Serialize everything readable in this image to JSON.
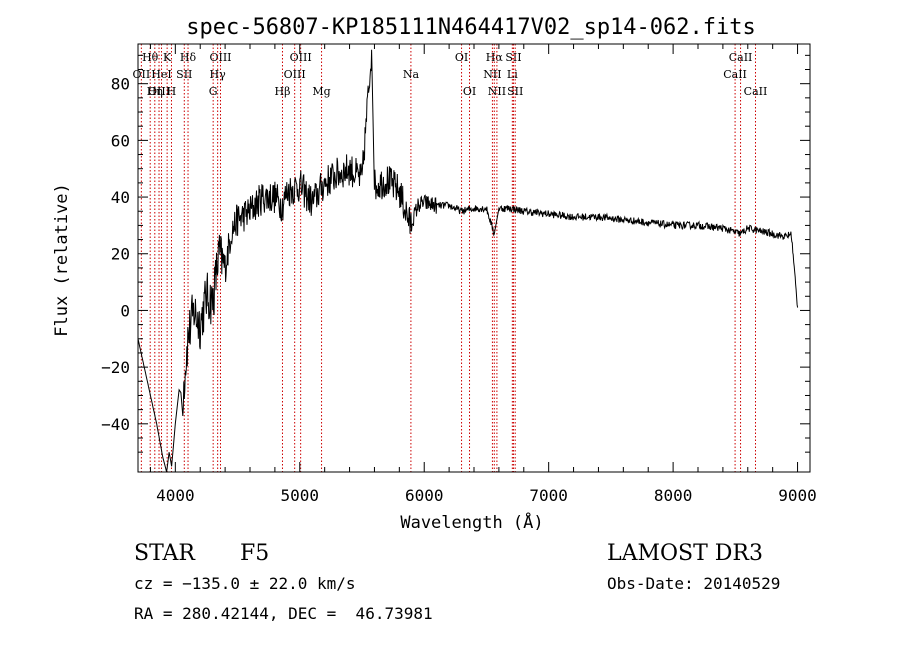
{
  "chart_data": {
    "type": "line",
    "title": "spec-56807-KP185111N464417V02_sp14-062.fits",
    "xlabel": "Wavelength (Å)",
    "ylabel": "Flux (relative)",
    "xlim": [
      3700,
      9100
    ],
    "ylim": [
      -57,
      94
    ],
    "xticks": [
      4000,
      5000,
      6000,
      7000,
      8000,
      9000
    ],
    "yticks": [
      -40,
      -20,
      0,
      20,
      40,
      60,
      80
    ],
    "grid": false,
    "line_color": "#000000",
    "marker_color": "#cc0000",
    "series": [
      {
        "x": [
          3700,
          3750,
          3800,
          3850,
          3900,
          3930,
          3950,
          3970,
          4000,
          4030,
          4060,
          4100,
          4150,
          4200,
          4250,
          4300,
          4350,
          4400,
          4450,
          4500,
          4600,
          4700,
          4800,
          4860,
          4900,
          5000,
          5100,
          5200,
          5300,
          5400,
          5500,
          5577,
          5600,
          5700,
          5800,
          5890,
          5950,
          6000,
          6100,
          6200,
          6300,
          6400,
          6500,
          6563,
          6600,
          6700,
          6800,
          7000,
          7200,
          7400,
          7600,
          7800,
          8000,
          8200,
          8400,
          8542,
          8600,
          8700,
          8800,
          8900,
          8950,
          9000
        ],
        "y": [
          -10,
          -20,
          -30,
          -40,
          -52,
          -57,
          -50,
          -55,
          -40,
          -28,
          -30,
          -10,
          0,
          -5,
          5,
          3,
          20,
          15,
          28,
          32,
          35,
          40,
          40,
          37,
          42,
          44,
          38,
          45,
          48,
          50,
          46,
          92,
          44,
          46,
          42,
          30,
          37,
          38,
          37,
          37,
          35,
          36,
          36,
          27,
          36,
          36,
          35,
          34,
          33,
          33,
          32,
          31,
          30,
          30,
          29,
          27,
          29,
          28,
          27,
          26,
          27,
          1
        ]
      }
    ],
    "line_markers": [
      {
        "label": "Hθ",
        "x": 3798,
        "row": 0
      },
      {
        "label": "OII",
        "x": 3727,
        "row": 1
      },
      {
        "label": "OIII",
        "x": 3869,
        "row": 2
      },
      {
        "label": "K",
        "x": 3934,
        "row": 0
      },
      {
        "label": "HeI",
        "x": 3889,
        "row": 1
      },
      {
        "label": "Hη",
        "x": 3835,
        "row": 2
      },
      {
        "label": "SII",
        "x": 4072,
        "row": 1
      },
      {
        "label": "H",
        "x": 3969,
        "row": 2
      },
      {
        "label": "Hδ",
        "x": 4102,
        "row": 0
      },
      {
        "label": "OIII",
        "x": 4363,
        "row": 0
      },
      {
        "label": "Hγ",
        "x": 4340,
        "row": 1
      },
      {
        "label": "G",
        "x": 4304,
        "row": 2
      },
      {
        "label": "OIII",
        "x": 5007,
        "row": 0
      },
      {
        "label": "OIII",
        "x": 4959,
        "row": 1
      },
      {
        "label": "Hβ",
        "x": 4861,
        "row": 2
      },
      {
        "label": "Mg",
        "x": 5175,
        "row": 2
      },
      {
        "label": "Na",
        "x": 5893,
        "row": 1
      },
      {
        "label": "OI",
        "x": 6300,
        "row": 0
      },
      {
        "label": "OI",
        "x": 6364,
        "row": 2
      },
      {
        "label": "Hα",
        "x": 6563,
        "row": 0
      },
      {
        "label": "SII",
        "x": 6717,
        "row": 0
      },
      {
        "label": "NII",
        "x": 6548,
        "row": 1
      },
      {
        "label": "Li",
        "x": 6708,
        "row": 1
      },
      {
        "label": "NII",
        "x": 6584,
        "row": 2
      },
      {
        "label": "SII",
        "x": 6731,
        "row": 2
      },
      {
        "label": "CaII",
        "x": 8542,
        "row": 0
      },
      {
        "label": "CaII",
        "x": 8498,
        "row": 1
      },
      {
        "label": "CaII",
        "x": 8662,
        "row": 2
      }
    ]
  },
  "info": {
    "class": "STAR",
    "subclass": "F5",
    "survey": "LAMOST DR3",
    "cz": "cz = −135.0 ± 22.0 km/s",
    "obs_date": "Obs-Date: 20140529",
    "coords": "RA = 280.42144, DEC =  46.73981"
  }
}
